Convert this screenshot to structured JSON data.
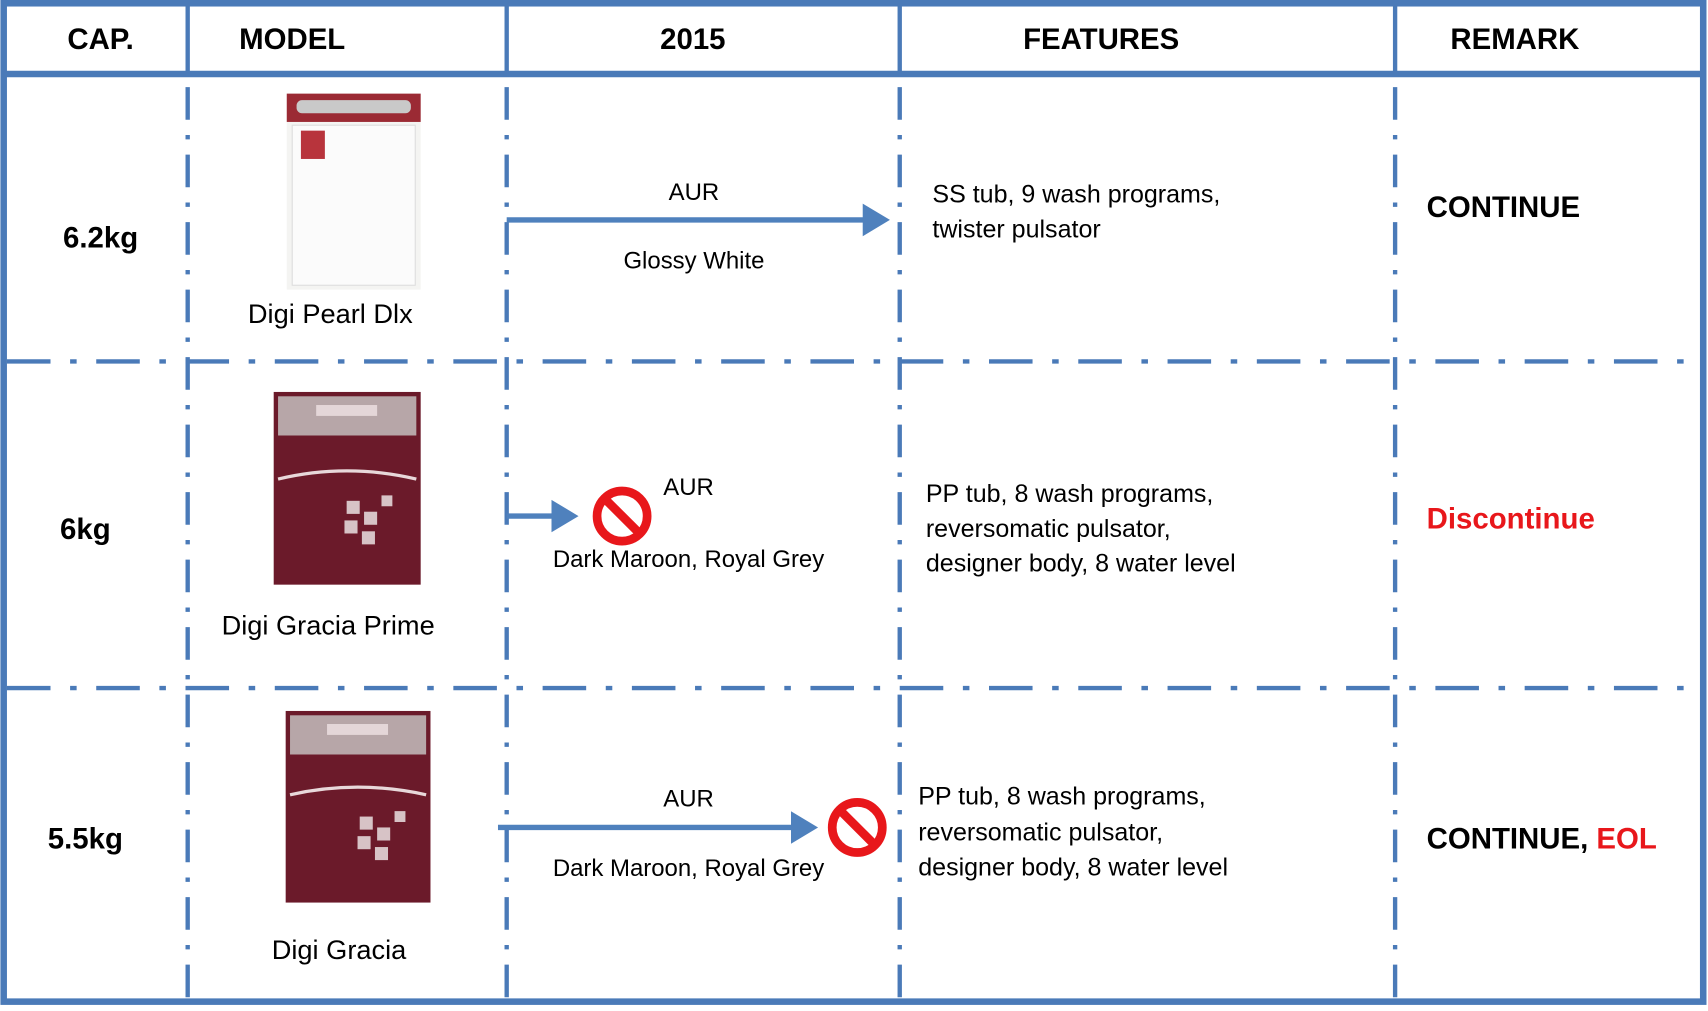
{
  "header": {
    "cap": "CAP.",
    "model": "MODEL",
    "year": "2015",
    "features": "FEATURES",
    "remark": "REMARK"
  },
  "rows": [
    {
      "capacity": "6.2kg",
      "model": "Digi Pearl Dlx",
      "plant": "AUR",
      "colors": "Glossy White",
      "features": [
        "SS tub, 9 wash programs,",
        "twister pulsator"
      ],
      "remark": [
        {
          "text": "CONTINUE",
          "color": "black"
        }
      ]
    },
    {
      "capacity": "6kg",
      "model": "Digi Gracia Prime",
      "plant": "AUR",
      "colors": "Dark Maroon, Royal Grey",
      "features": [
        "PP tub, 8 wash programs,",
        "reversomatic pulsator,",
        "designer body, 8 water level"
      ],
      "remark": [
        {
          "text": "Discontinue",
          "color": "red"
        }
      ]
    },
    {
      "capacity": "5.5kg",
      "model": "Digi Gracia",
      "plant": "AUR",
      "colors": "Dark Maroon, Royal Grey",
      "features": [
        "PP tub, 8 wash programs,",
        "reversomatic pulsator,",
        "designer body, 8 water level"
      ],
      "remark": [
        {
          "text": "CONTINUE, ",
          "color": "black"
        },
        {
          "text": "EOL",
          "color": "red"
        }
      ]
    }
  ]
}
